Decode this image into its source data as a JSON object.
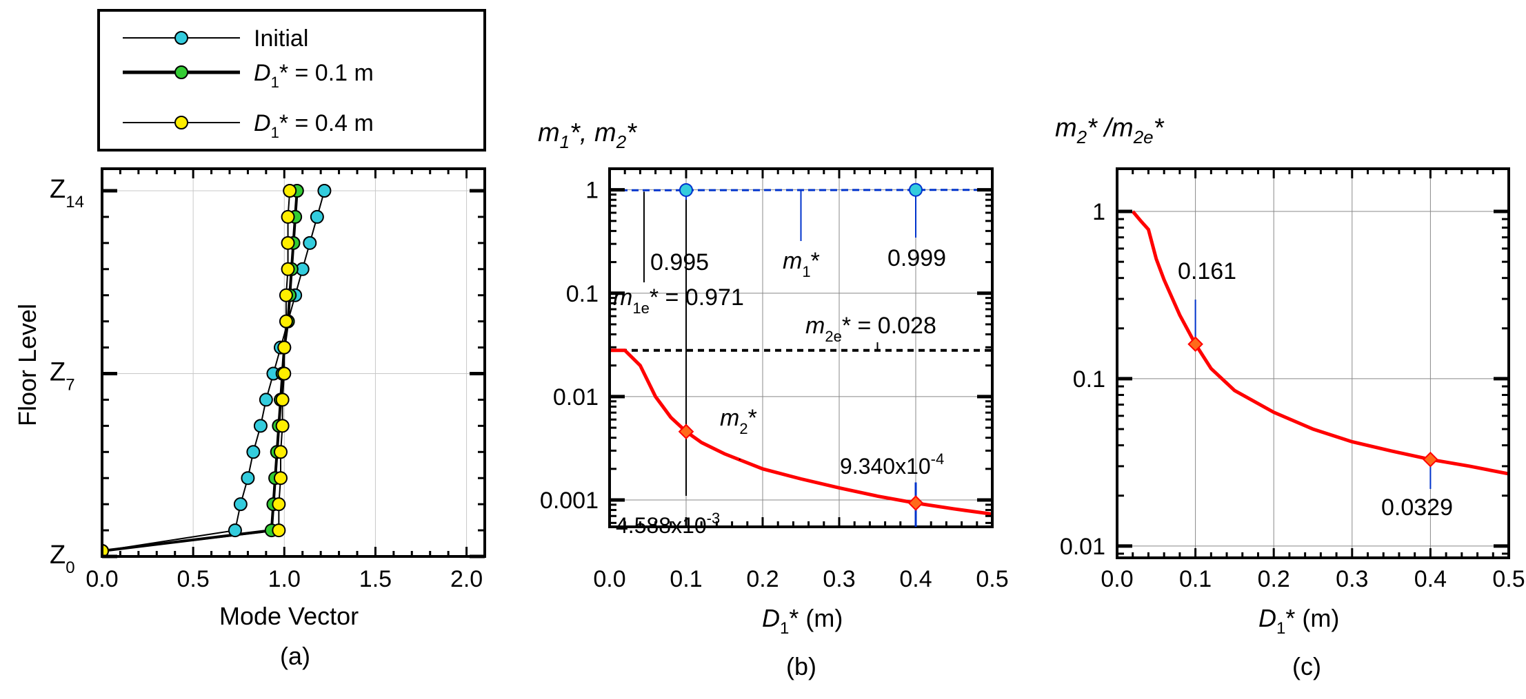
{
  "legend": {
    "items": [
      {
        "label": "Initial",
        "color": "#33ccdd",
        "line": "thin"
      },
      {
        "label": "D1* = 0.1 m",
        "pre": "D",
        "sub": "1",
        "post": "* = 0.1 m",
        "color": "#33cc33",
        "line": "thick"
      },
      {
        "label": "D1* = 0.4 m",
        "pre": "D",
        "sub": "1",
        "post": "* = 0.4 m",
        "color": "#ffee00",
        "line": "thin"
      }
    ]
  },
  "colors": {
    "initial": "#33ccdd",
    "d01": "#33cc33",
    "d04": "#ffee00",
    "curve": "#ff0000",
    "marker": "#ff6a1a",
    "blue": "#0033cc"
  },
  "chart_data": [
    {
      "id": "a",
      "type": "line",
      "caption": "(a)",
      "xlabel": "Mode Vector",
      "ylabel": "Floor Level",
      "xlim": [
        0.0,
        2.1
      ],
      "ylim": [
        0,
        14
      ],
      "xticks": [
        "0.0",
        "0.5",
        "1.0",
        "1.5",
        "2.0"
      ],
      "yticks": [
        {
          "value": 0,
          "base": "Z",
          "sub": "0"
        },
        {
          "value": 7,
          "base": "Z",
          "sub": "7"
        },
        {
          "value": 14,
          "base": "Z",
          "sub": "14"
        }
      ],
      "floors": [
        0,
        1,
        2,
        3,
        4,
        5,
        6,
        7,
        8,
        9,
        10,
        11,
        12,
        13,
        14
      ],
      "series": [
        {
          "name": "Initial",
          "values": [
            0,
            0.73,
            0.76,
            0.8,
            0.83,
            0.87,
            0.9,
            0.94,
            0.98,
            1.02,
            1.06,
            1.1,
            1.14,
            1.18,
            1.22
          ]
        },
        {
          "name": "D1* = 0.1 m",
          "values": [
            0,
            0.93,
            0.94,
            0.95,
            0.96,
            0.97,
            0.98,
            0.99,
            1.0,
            1.02,
            1.03,
            1.04,
            1.05,
            1.06,
            1.07
          ]
        },
        {
          "name": "D1* = 0.4 m",
          "values": [
            0,
            0.97,
            0.97,
            0.98,
            0.98,
            0.99,
            0.99,
            1.0,
            1.0,
            1.01,
            1.01,
            1.02,
            1.02,
            1.02,
            1.03
          ]
        }
      ]
    },
    {
      "id": "b",
      "type": "line",
      "scale": "log",
      "caption": "(b)",
      "title": {
        "m": "m",
        "s1": "1",
        "mid": "*, ",
        "m2": "m",
        "s2": "2",
        "end": "*"
      },
      "xlabel": {
        "pre": "D",
        "sub": "1",
        "post": "* (m)"
      },
      "xlim": [
        0.0,
        0.5
      ],
      "ylim": [
        0.00055,
        1.6
      ],
      "xticks": [
        "0.0",
        "0.1",
        "0.2",
        "0.3",
        "0.4",
        "0.5"
      ],
      "yticks": [
        {
          "value": 1,
          "label": "1"
        },
        {
          "value": 0.1,
          "label": "0.1"
        },
        {
          "value": 0.01,
          "label": "0.01"
        },
        {
          "value": 0.001,
          "label": "0.001"
        }
      ],
      "m1_curve": {
        "x": [
          0.0,
          0.5
        ],
        "y": [
          0.99,
          0.999
        ]
      },
      "m1e_line": 0.971,
      "m2e_line": 0.028,
      "m2_curve": {
        "x": [
          0.0,
          0.02,
          0.04,
          0.06,
          0.08,
          0.1,
          0.12,
          0.15,
          0.2,
          0.25,
          0.3,
          0.35,
          0.4,
          0.45,
          0.5
        ],
        "y": [
          0.028,
          0.028,
          0.02,
          0.01,
          0.0063,
          0.004588,
          0.0036,
          0.0028,
          0.002,
          0.0016,
          0.00131,
          0.00109,
          0.000934,
          0.00082,
          0.00073
        ]
      },
      "points": [
        {
          "x": 0.1,
          "y": 0.995,
          "kind": "m1"
        },
        {
          "x": 0.4,
          "y": 0.999,
          "kind": "m1"
        },
        {
          "x": 0.1,
          "y": 0.004588,
          "kind": "m2"
        },
        {
          "x": 0.4,
          "y": 0.000934,
          "kind": "m2"
        }
      ],
      "annotations": {
        "a0995": "0.995",
        "a0999": "0.999",
        "m1": {
          "base": "m",
          "sub": "1",
          "post": "*"
        },
        "m1e": {
          "base": "m",
          "sub": "1e",
          "post": "* = 0.971"
        },
        "m2e": {
          "base": "m",
          "sub": "2e",
          "post": "* = 0.028"
        },
        "m2": {
          "base": "m",
          "sub": "2",
          "post": "*"
        },
        "a934": {
          "base": "9.340x10",
          "sup": "-4"
        },
        "a4588": {
          "base": "4.588x10",
          "sup": "-3"
        }
      }
    },
    {
      "id": "c",
      "type": "line",
      "scale": "log",
      "caption": "(c)",
      "title": {
        "m": "m",
        "s1": "2",
        "mid": "* /",
        "m2": "m",
        "s2": "2e",
        "end": "*"
      },
      "xlabel": {
        "pre": "D",
        "sub": "1",
        "post": "* (m)"
      },
      "xlim": [
        0.0,
        0.5
      ],
      "ylim": [
        0.0085,
        1.8
      ],
      "xticks": [
        "0.0",
        "0.1",
        "0.2",
        "0.3",
        "0.4",
        "0.5"
      ],
      "yticks": [
        {
          "value": 1,
          "label": "1"
        },
        {
          "value": 0.1,
          "label": "0.1"
        },
        {
          "value": 0.01,
          "label": "0.01"
        }
      ],
      "curve": {
        "x": [
          0.02,
          0.03,
          0.04,
          0.05,
          0.06,
          0.08,
          0.1,
          0.12,
          0.15,
          0.2,
          0.25,
          0.3,
          0.35,
          0.4,
          0.45,
          0.5
        ],
        "y": [
          1.0,
          0.88,
          0.78,
          0.52,
          0.39,
          0.24,
          0.161,
          0.115,
          0.085,
          0.063,
          0.05,
          0.042,
          0.037,
          0.0329,
          0.03,
          0.027
        ]
      },
      "points": [
        {
          "x": 0.1,
          "y": 0.161,
          "label": "0.161"
        },
        {
          "x": 0.4,
          "y": 0.0329,
          "label": "0.0329"
        }
      ]
    }
  ]
}
